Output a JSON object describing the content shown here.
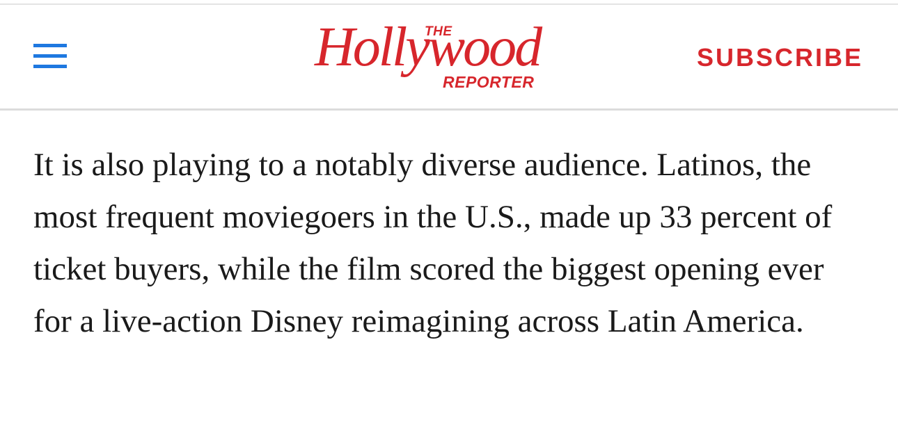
{
  "header": {
    "logo": {
      "the": "THE",
      "name": "Hollywood",
      "reporter": "REPORTER"
    },
    "subscribe": "SUBSCRIBE"
  },
  "article": {
    "paragraph": "It is also playing to a notably diverse audience. Latinos, the most frequent moviegoers in the U.S., made up 33 percent of ticket buyers, while the film scored the biggest opening ever for a live-action Disney reimagining across Latin America."
  }
}
